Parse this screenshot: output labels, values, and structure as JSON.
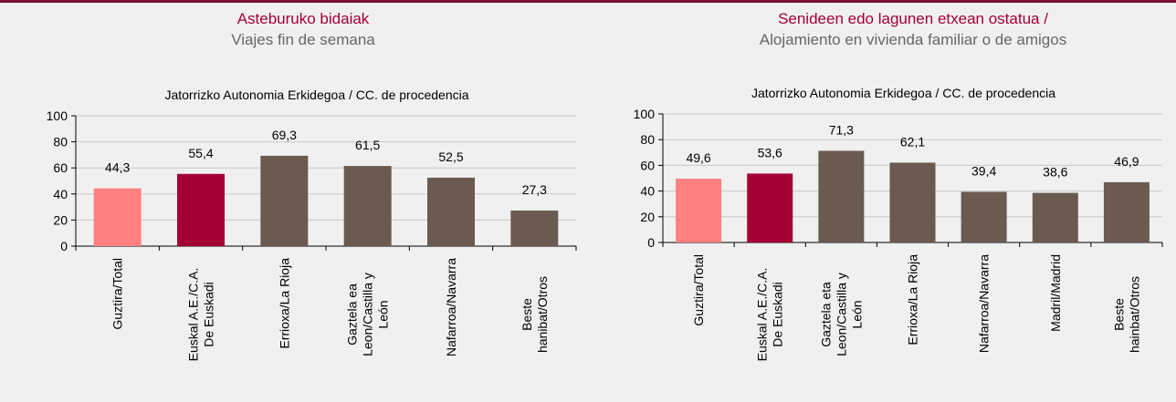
{
  "chart_data": [
    {
      "type": "bar",
      "title": "Asteburuko bidaiak",
      "subtitle": "Viajes fin de semana",
      "x_label": "Jatorrizko Autonomia Erkidegoa / CC. de procedencia",
      "categories": [
        [
          "Guztira/Total"
        ],
        [
          "Euskal A.E./C.A.",
          "De Euskadi"
        ],
        [
          "Errioxa/La Rioja"
        ],
        [
          "Gaztela ea",
          "Leon/Castilla y",
          "León"
        ],
        [
          "Nafarroa/Navarra"
        ],
        [
          "Beste",
          "hanibat/Otros"
        ]
      ],
      "values": [
        44.3,
        55.4,
        69.3,
        61.5,
        52.5,
        27.3
      ],
      "value_labels": [
        "44,3",
        "55,4",
        "69,3",
        "61,5",
        "52,5",
        "27,3"
      ],
      "colors": [
        "#ff8080",
        "#a50034",
        "#6b5a50",
        "#6b5a50",
        "#6b5a50",
        "#6b5a50"
      ],
      "ylim": [
        0,
        100
      ],
      "yticks": [
        0,
        20,
        40,
        60,
        80,
        100
      ],
      "grid": true
    },
    {
      "type": "bar",
      "title": "Senideen edo lagunen etxean ostatua /",
      "subtitle": "Alojamiento en vivienda familiar o de amigos",
      "x_label": "Jatorrizko Autonomia Erkidegoa / CC. de procedencia",
      "categories": [
        [
          "Guztira/Total"
        ],
        [
          "Euskal A.E./C.A.",
          "De Euskadi"
        ],
        [
          "Gaztela eta",
          "Leon/Castilla y",
          "León"
        ],
        [
          "Errioxa/La Rioja"
        ],
        [
          "Nafarroa/Navarra"
        ],
        [
          "Madril/Madrid"
        ],
        [
          "Beste",
          "hainbat/Otros"
        ]
      ],
      "values": [
        49.6,
        53.6,
        71.3,
        62.1,
        39.4,
        38.6,
        46.9
      ],
      "value_labels": [
        "49,6",
        "53,6",
        "71,3",
        "62,1",
        "39,4",
        "38,6",
        "46,9"
      ],
      "colors": [
        "#ff8080",
        "#a50034",
        "#6b5a50",
        "#6b5a50",
        "#6b5a50",
        "#6b5a50",
        "#6b5a50"
      ],
      "ylim": [
        0,
        100
      ],
      "yticks": [
        0,
        20,
        40,
        60,
        80,
        100
      ],
      "grid": true
    }
  ]
}
